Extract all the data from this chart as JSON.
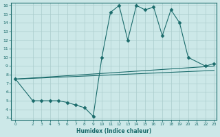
{
  "xlabel": "Humidex (Indice chaleur)",
  "bg_color": "#cce8e8",
  "line_color": "#1a6b6b",
  "grid_color": "#aacccc",
  "xlim": [
    -0.5,
    23.3
  ],
  "ylim": [
    2.8,
    16.3
  ],
  "xticks": [
    0,
    2,
    3,
    4,
    5,
    6,
    7,
    8,
    9,
    10,
    11,
    12,
    13,
    14,
    15,
    16,
    17,
    18,
    19,
    20,
    21,
    22,
    23
  ],
  "yticks": [
    3,
    4,
    5,
    6,
    7,
    8,
    9,
    10,
    11,
    12,
    13,
    14,
    15,
    16
  ],
  "line1_x": [
    0,
    23
  ],
  "line1_y": [
    7.5,
    9.0
  ],
  "line2_x": [
    0,
    23
  ],
  "line2_y": [
    7.5,
    8.5
  ],
  "line3_x": [
    0,
    2,
    3,
    4,
    5,
    6,
    7,
    8,
    9,
    10,
    11,
    12,
    13,
    14,
    15,
    16,
    17,
    18,
    19,
    20,
    22,
    23
  ],
  "line3_y": [
    7.5,
    5.0,
    5.0,
    5.0,
    5.0,
    4.8,
    4.5,
    4.2,
    3.2,
    10.0,
    15.2,
    16.0,
    12.0,
    16.0,
    15.5,
    15.8,
    12.5,
    15.5,
    14.0,
    10.0,
    9.0,
    9.3
  ],
  "marker": "D",
  "markersize": 2.5
}
